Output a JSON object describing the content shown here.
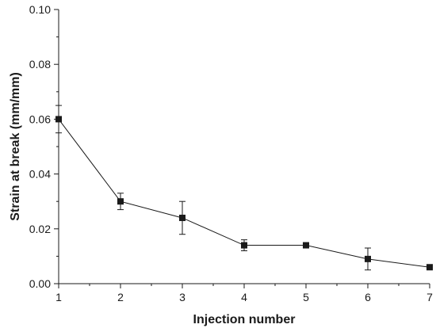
{
  "chart_data": {
    "type": "line",
    "title": "",
    "xlabel": "Injection number",
    "ylabel": "Strain at break (mm/mm)",
    "x_ticks": [
      "1",
      "2",
      "3",
      "4",
      "5",
      "6",
      "7"
    ],
    "y_ticks": [
      "0.00",
      "0.02",
      "0.04",
      "0.06",
      "0.08",
      "0.10"
    ],
    "xlim": [
      1,
      7
    ],
    "ylim": [
      0,
      0.1
    ],
    "grid": false,
    "legend": false,
    "series": [
      {
        "x": [
          1,
          2,
          3,
          4,
          5,
          6,
          7
        ],
        "values": [
          0.06,
          0.03,
          0.024,
          0.014,
          0.014,
          0.009,
          0.006
        ],
        "error": [
          0.005,
          0.003,
          0.006,
          0.002,
          0.0005,
          0.004,
          0.0005
        ],
        "marker": "square",
        "color": "#1a1a1a"
      }
    ]
  }
}
